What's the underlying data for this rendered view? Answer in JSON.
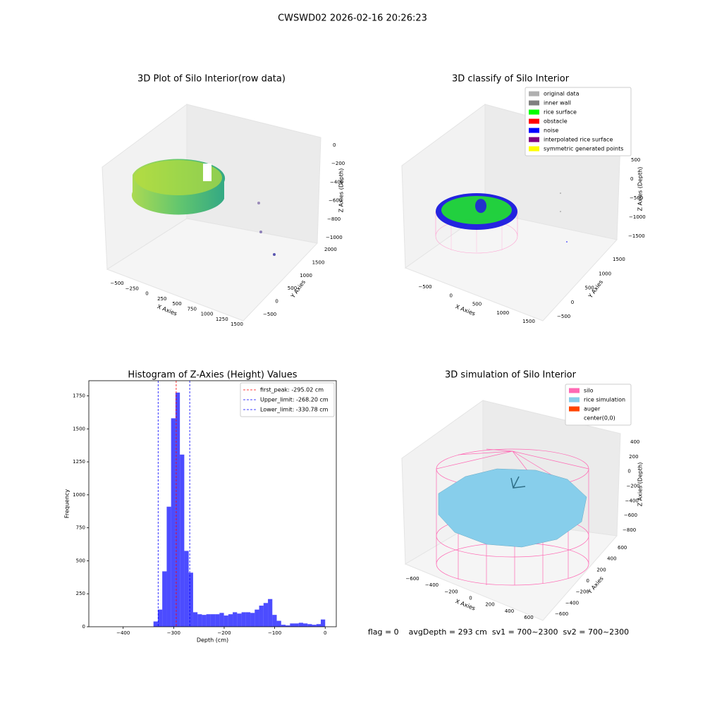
{
  "title": "CWSWD02 2026-02-16 20:26:23",
  "footer": "flag = 0    avgDepth = 293 cm  sv1 = 700~2300  sv2 = 700~2300",
  "chart_data": [
    {
      "type": "scatter3d",
      "title": "3D Plot of Silo Interior(row data)",
      "xlabel": "X Axies",
      "ylabel": "Y Axies",
      "zlabel": "Z Axies (Depth)",
      "xticks": [
        {
          "value": -500,
          "label": "−500"
        },
        {
          "value": -250,
          "label": "−250"
        },
        0,
        250,
        500,
        750,
        1000,
        1250,
        1500
      ],
      "yticks": [
        {
          "value": -500,
          "label": "−500"
        },
        0,
        500,
        1000,
        1500,
        2000
      ],
      "zticks": [
        0,
        {
          "value": -200,
          "label": "−200"
        },
        {
          "value": -400,
          "label": "−400"
        },
        {
          "value": -600,
          "label": "−600"
        },
        {
          "value": -800,
          "label": "−800"
        },
        {
          "value": -1000,
          "label": "−1000"
        }
      ]
    },
    {
      "type": "scatter3d",
      "title": "3D classify of Silo Interior",
      "xlabel": "X Axies",
      "ylabel": "Y Axies",
      "zlabel": "Z Axies (Depth)",
      "xticks": [
        {
          "value": -500,
          "label": "−500"
        },
        0,
        500,
        1000,
        1500
      ],
      "yticks": [
        {
          "value": -500,
          "label": "−500"
        },
        0,
        500,
        1000,
        1500
      ],
      "zticks": [
        500,
        0,
        {
          "value": -500,
          "label": "−500"
        },
        {
          "value": -1000,
          "label": "−1000"
        },
        {
          "value": -1500,
          "label": "−1500"
        }
      ],
      "legend": [
        {
          "name": "original data",
          "color": "#b0b0b0"
        },
        {
          "name": "inner wall",
          "color": "#808080"
        },
        {
          "name": "rice surface",
          "color": "#00ff00"
        },
        {
          "name": "obstacle",
          "color": "#ff0000"
        },
        {
          "name": "noise",
          "color": "#0000ff"
        },
        {
          "name": "interpolated rice surface",
          "color": "#800080"
        },
        {
          "name": "symmetric generated points",
          "color": "#ffff00"
        }
      ]
    },
    {
      "type": "histogram",
      "title": "Histogram of Z-Axies (Height) Values",
      "xlabel": "Depth (cm)",
      "ylabel": "Frequency",
      "color": "#0000ff",
      "opacity": 0.7,
      "bins": [
        -340,
        -331.3,
        -322.6,
        -313.8,
        -305.1,
        -296.4,
        -287.7,
        -279.0,
        -270.3,
        -261.5,
        -252.8,
        -244.1,
        -235.4,
        -226.7,
        -217.9,
        -209.2,
        -200.5,
        -191.8,
        -183.1,
        -174.4,
        -165.6,
        -156.9,
        -148.2,
        -139.5,
        -130.8,
        -122.1,
        -113.3,
        -104.6,
        -95.9,
        -87.2,
        -78.5,
        -69.7,
        -61.0,
        -52.3,
        -43.6,
        -34.9,
        -26.2,
        -17.4,
        -8.7,
        0
      ],
      "counts": [
        40,
        130,
        420,
        910,
        1580,
        1775,
        1305,
        575,
        410,
        110,
        95,
        90,
        95,
        95,
        95,
        105,
        85,
        95,
        110,
        100,
        110,
        110,
        105,
        130,
        160,
        180,
        210,
        90,
        45,
        15,
        10,
        25,
        25,
        30,
        25,
        20,
        15,
        20,
        55
      ],
      "vlines": [
        {
          "value": -295.02,
          "label": "first_peak: -295.02 cm",
          "color": "#ff0000"
        },
        {
          "value": -268.2,
          "label": "Upper_limit: -268.20 cm",
          "color": "#0000ff"
        },
        {
          "value": -330.78,
          "label": "Lower_limit: -330.78 cm",
          "color": "#0000ff"
        }
      ],
      "legend_loc": "upper right",
      "xlim": [
        -468,
        22
      ],
      "ylim": [
        0,
        1865
      ],
      "xticks": [
        {
          "value": -400,
          "label": "−400"
        },
        {
          "value": -300,
          "label": "−300"
        },
        {
          "value": -200,
          "label": "−200"
        },
        {
          "value": -100,
          "label": "−100"
        },
        0
      ],
      "yticks": [
        0,
        250,
        500,
        750,
        1000,
        1250,
        1500,
        1750
      ]
    },
    {
      "type": "scatter3d",
      "title": "3D simulation of Silo Interior",
      "xlabel": "X Axies",
      "ylabel": "Y Axies",
      "zlabel": "Z Axies (Depth)",
      "xticks": [
        {
          "value": -600,
          "label": "−600"
        },
        {
          "value": -400,
          "label": "−400"
        },
        {
          "value": -200,
          "label": "−200"
        },
        0,
        200,
        400,
        600
      ],
      "yticks": [
        {
          "value": -600,
          "label": "−600"
        },
        {
          "value": -400,
          "label": "−400"
        },
        {
          "value": -200,
          "label": "−200"
        },
        0,
        200,
        400,
        600
      ],
      "zticks": [
        400,
        200,
        0,
        {
          "value": -200,
          "label": "−200"
        },
        {
          "value": -400,
          "label": "−400"
        },
        {
          "value": -600,
          "label": "−600"
        },
        {
          "value": -800,
          "label": "−800"
        }
      ],
      "legend": [
        {
          "name": "silo",
          "color": "#ff69b4"
        },
        {
          "name": "rice simulation",
          "color": "#87ceeb"
        },
        {
          "name": "auger",
          "color": "#ff4500"
        },
        {
          "name": "center(0,0)",
          "color": "#ffffff"
        }
      ]
    }
  ]
}
